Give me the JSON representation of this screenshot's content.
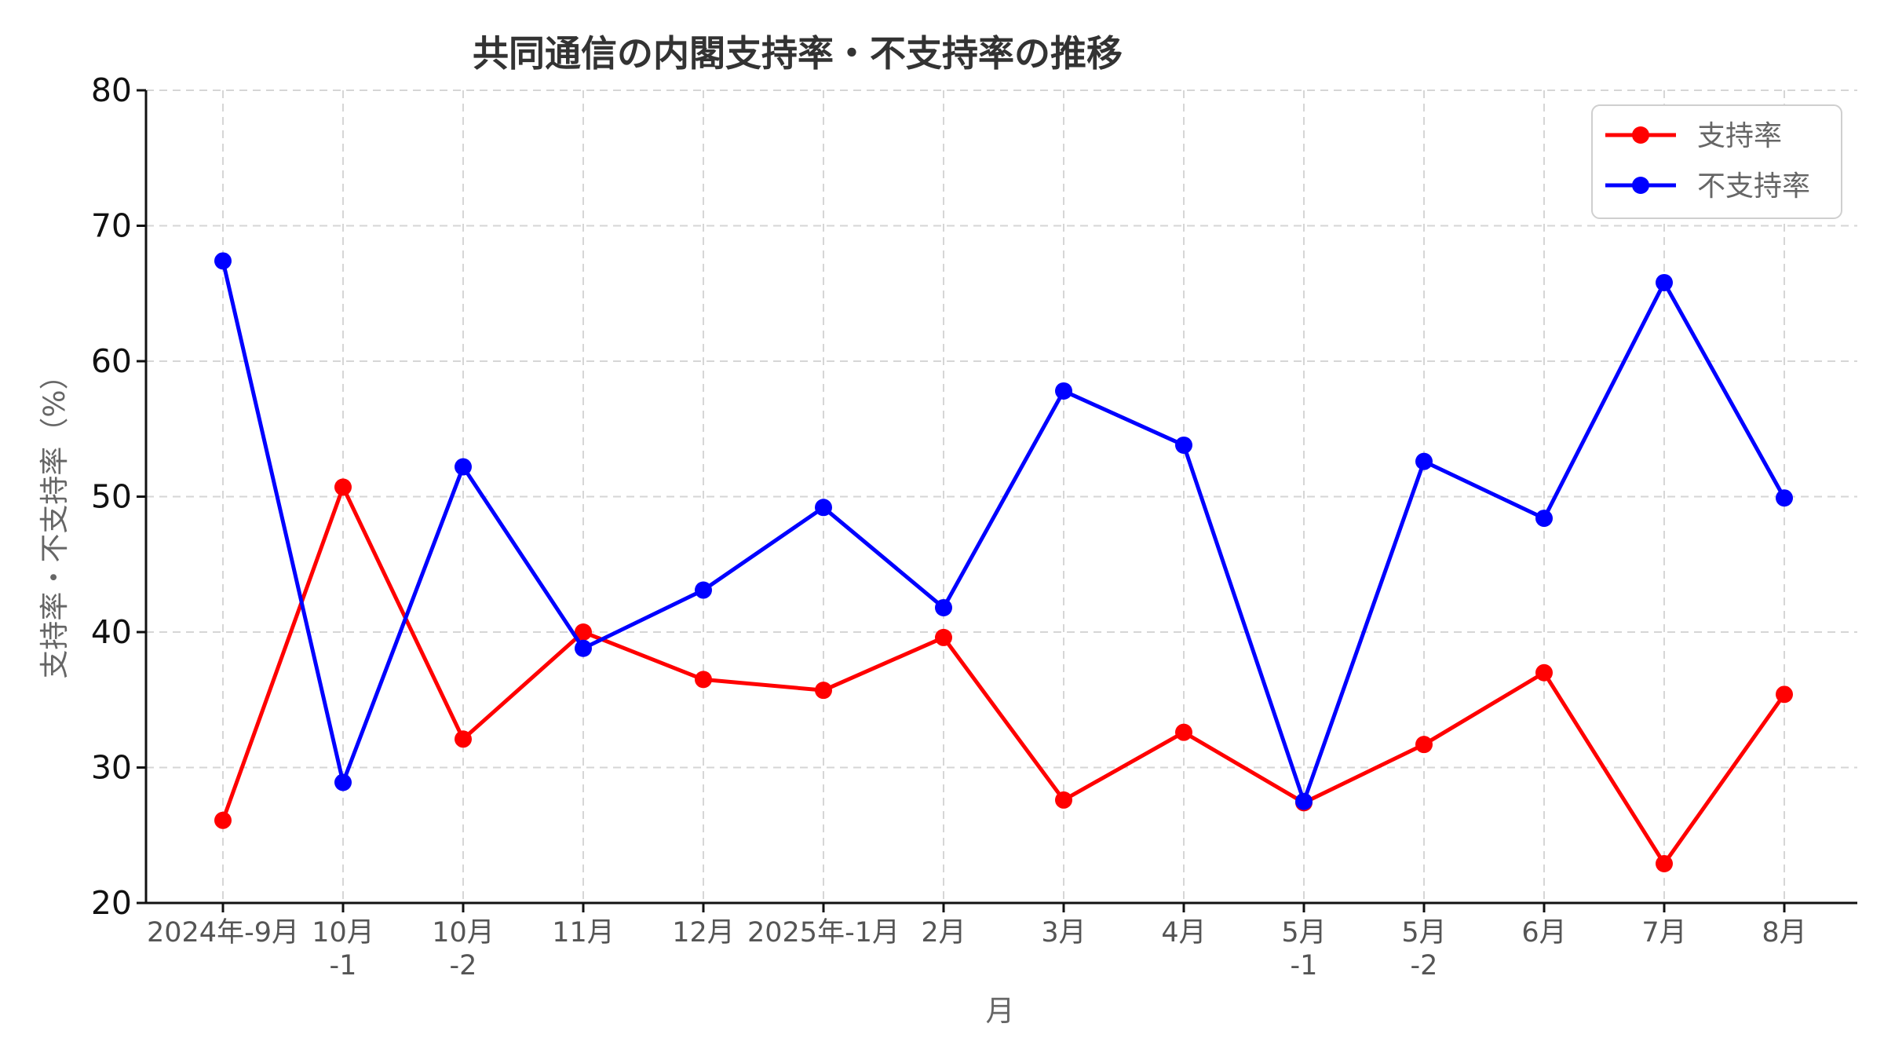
{
  "chart_data": {
    "type": "line",
    "title": "共同通信の内閣支持率・不支持率の推移",
    "xlabel": "月",
    "ylabel": "支持率・不支持率（%）",
    "ylim": [
      20,
      80
    ],
    "yticks": [
      "20",
      "30",
      "40",
      "50",
      "60",
      "70",
      "80"
    ],
    "grid": true,
    "legend_position": "top-right",
    "categories": [
      "2024年-9月",
      "10月\n-1",
      "10月\n-2",
      "11月",
      "12月",
      "2025年-1月",
      "2月",
      "3月",
      "4月",
      "5月\n-1",
      "5月\n-2",
      "6月",
      "7月",
      "8月"
    ],
    "series": [
      {
        "name": "支持率",
        "color": "#ff0000",
        "values": [
          26.1,
          50.7,
          32.1,
          40.0,
          36.5,
          35.7,
          39.6,
          27.6,
          32.6,
          27.4,
          31.7,
          37.0,
          22.9,
          35.4
        ]
      },
      {
        "name": "不支持率",
        "color": "#0000ff",
        "values": [
          67.4,
          28.9,
          52.2,
          38.8,
          43.1,
          49.2,
          41.8,
          57.8,
          53.8,
          27.5,
          52.6,
          48.4,
          65.8,
          49.9
        ]
      }
    ]
  }
}
